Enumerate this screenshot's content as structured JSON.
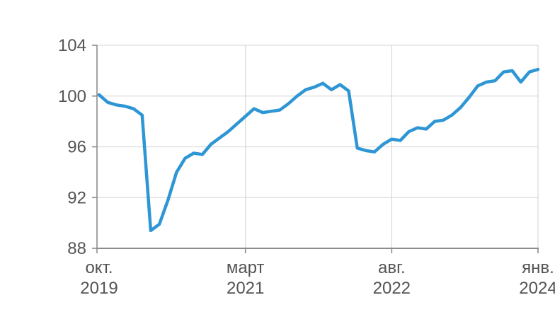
{
  "colors": {
    "line": "#2e96d4",
    "grid": "#dcdcdc",
    "axis": "#8c8c8c",
    "label": "#545454",
    "background": "#ffffff"
  },
  "chart_data": {
    "type": "line",
    "title": "",
    "x": [
      "2019-10",
      "2019-11",
      "2019-12",
      "2020-01",
      "2020-02",
      "2020-03",
      "2020-04",
      "2020-05",
      "2020-06",
      "2020-07",
      "2020-08",
      "2020-09",
      "2020-10",
      "2020-11",
      "2020-12",
      "2021-01",
      "2021-02",
      "2021-03",
      "2021-04",
      "2021-05",
      "2021-06",
      "2021-07",
      "2021-08",
      "2021-09",
      "2021-10",
      "2021-11",
      "2021-12",
      "2022-01",
      "2022-02",
      "2022-03",
      "2022-04",
      "2022-05",
      "2022-06",
      "2022-07",
      "2022-08",
      "2022-09",
      "2022-10",
      "2022-11",
      "2022-12",
      "2023-01",
      "2023-02",
      "2023-03",
      "2023-04",
      "2023-05",
      "2023-06",
      "2023-07",
      "2023-08",
      "2023-09",
      "2023-10",
      "2023-11",
      "2023-12",
      "2024-01"
    ],
    "series": [
      {
        "values": [
          100.1,
          99.5,
          99.3,
          99.2,
          99.0,
          98.5,
          89.4,
          89.9,
          91.8,
          94.0,
          95.1,
          95.5,
          95.4,
          96.2,
          96.7,
          97.2,
          97.8,
          98.4,
          99.0,
          98.7,
          98.8,
          98.9,
          99.4,
          100.0,
          100.5,
          100.7,
          101.0,
          100.5,
          100.9,
          100.4,
          95.9,
          95.7,
          95.6,
          96.2,
          96.6,
          96.5,
          97.2,
          97.5,
          97.4,
          98.0,
          98.1,
          98.5,
          99.1,
          99.9,
          100.8,
          101.1,
          101.2,
          101.9,
          102.0,
          101.1,
          101.9,
          102.1
        ]
      }
    ],
    "y_ticks": [
      "88",
      "92",
      "96",
      "100",
      "104"
    ],
    "y_tick_values": [
      88,
      92,
      96,
      100,
      104
    ],
    "x_ticks": [
      {
        "index": 0,
        "line1": "окт.",
        "line2": "2019"
      },
      {
        "index": 17,
        "line1": "март",
        "line2": "2021"
      },
      {
        "index": 34,
        "line1": "авг.",
        "line2": "2022"
      },
      {
        "index": 51,
        "line1": "янв.",
        "line2": "2024"
      }
    ],
    "ylim": [
      88,
      104
    ],
    "xlabel": "",
    "ylabel": "",
    "grid": true,
    "legend": false
  }
}
